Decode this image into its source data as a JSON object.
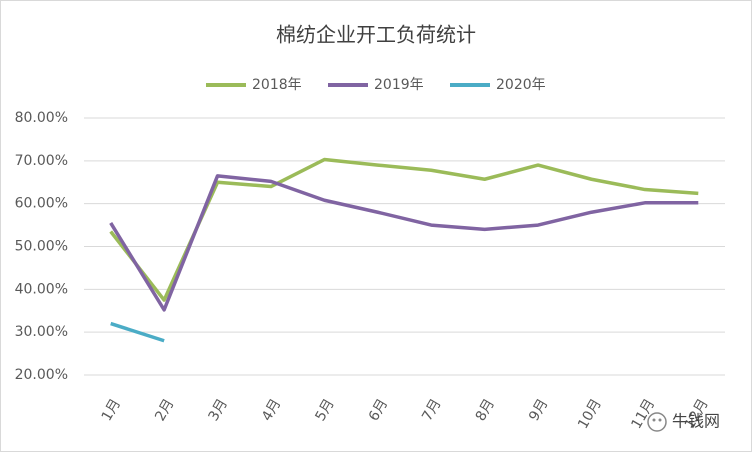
{
  "chart_data": {
    "type": "line",
    "title": "棉纺企业开工负荷统计",
    "categories": [
      "1月",
      "2月",
      "3月",
      "4月",
      "5月",
      "6月",
      "7月",
      "8月",
      "9月",
      "10月",
      "11月",
      "12月"
    ],
    "series": [
      {
        "name": "2018年",
        "color": "#9bbb59",
        "values": [
          53.5,
          37.5,
          65,
          64,
          70.3,
          69,
          67.8,
          65.7,
          69,
          65.7,
          63.3,
          62.4
        ]
      },
      {
        "name": "2019年",
        "color": "#8064a2",
        "values": [
          55.5,
          35.2,
          66.5,
          65.2,
          60.8,
          58,
          55,
          54,
          55,
          58,
          60.2,
          60.2
        ]
      },
      {
        "name": "2020年",
        "color": "#4bacc6",
        "values": [
          32,
          28,
          null,
          null,
          null,
          null,
          null,
          null,
          null,
          null,
          null,
          null
        ]
      }
    ],
    "ylim": [
      20,
      80
    ],
    "yticks": [
      {
        "value": 20,
        "label": "20.00%"
      },
      {
        "value": 30,
        "label": "30.00%"
      },
      {
        "value": 40,
        "label": "40.00%"
      },
      {
        "value": 50,
        "label": "50.00%"
      },
      {
        "value": 60,
        "label": "60.00%"
      },
      {
        "value": 70,
        "label": "70.00%"
      },
      {
        "value": 80,
        "label": "80.00%"
      }
    ],
    "grid": true,
    "legend": "top",
    "watermark": "牛钱网"
  }
}
